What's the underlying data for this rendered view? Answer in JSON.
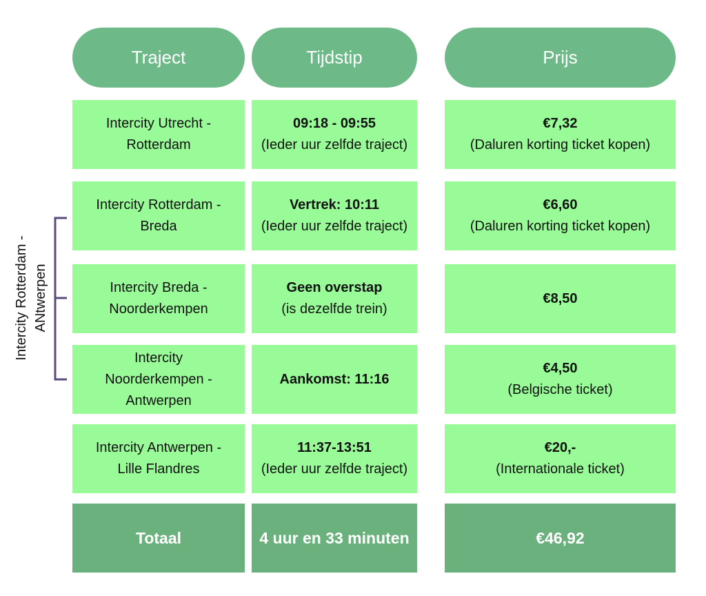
{
  "header": [
    "Traject",
    "Tijdstip",
    "Prijs"
  ],
  "rows": [
    [
      [
        "Intercity Utrecht -",
        "Rotterdam"
      ],
      [
        "09:18 - 09:55",
        "(Ieder uur zelfde traject)"
      ],
      [
        "€7,32",
        "(Daluren korting ticket kopen)"
      ]
    ],
    [
      [
        "Intercity Rotterdam -",
        "Breda"
      ],
      [
        "Vertrek: 10:11",
        "(Ieder uur zelfde traject)"
      ],
      [
        "€6,60",
        "(Daluren korting ticket kopen)"
      ]
    ],
    [
      [
        "Intercity Breda -",
        "Noorderkempen"
      ],
      [
        "Geen overstap",
        "(is dezelfde trein)"
      ],
      [
        "€8,50"
      ]
    ],
    [
      [
        "Intercity",
        "Noorderkempen -",
        "Antwerpen"
      ],
      [
        "Aankomst: 11:16"
      ],
      [
        "€4,50",
        "(Belgische ticket)"
      ]
    ],
    [
      [
        "Intercity Antwerpen -",
        "Lille Flandres"
      ],
      [
        "11:37-13:51",
        "(Ieder uur zelfde traject)"
      ],
      [
        "€20,-",
        "(Internationale ticket)"
      ]
    ]
  ],
  "total": [
    "Totaal",
    "4 uur en 33 minuten",
    "€46,92"
  ],
  "side_label": [
    "Intercity Rotterdam -",
    "ANtwerpen"
  ]
}
